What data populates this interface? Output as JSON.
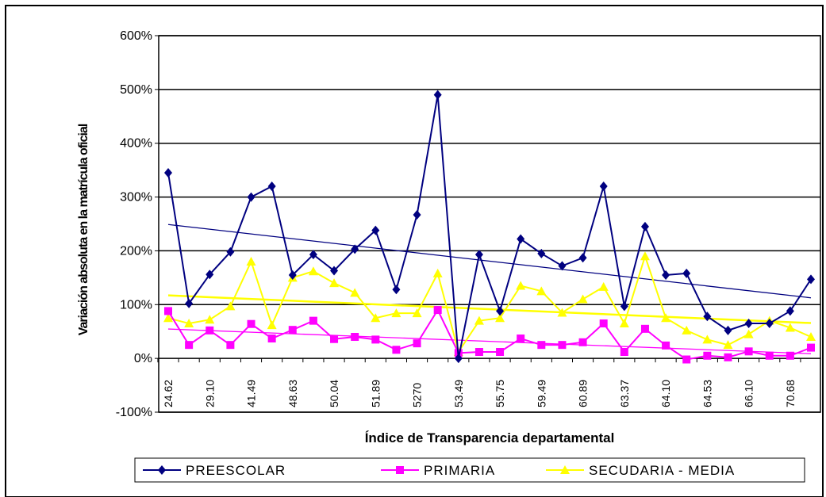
{
  "chart_data": {
    "type": "line",
    "y_axis_label": "Variación absoluta en la matrícula oficial",
    "x_axis_label": "Índice de Transparencia departamental",
    "categories": [
      "24.62",
      null,
      "29.10",
      null,
      "41.49",
      null,
      "48.63",
      null,
      "50.04",
      null,
      "51.89",
      null,
      "5270",
      null,
      "53.49",
      null,
      "55.75",
      null,
      "59.49",
      null,
      "60.89",
      null,
      "63.37",
      null,
      "64.10",
      null,
      "64.53",
      null,
      "66.10",
      null,
      "70.68",
      null
    ],
    "series": [
      {
        "name": "PREESCOLAR",
        "color": "#000080",
        "marker": "diamond",
        "trendline": true,
        "values": [
          345,
          102,
          156,
          198,
          300,
          320,
          155,
          193,
          163,
          203,
          238,
          128,
          267,
          490,
          0,
          193,
          88,
          222,
          195,
          172,
          187,
          320,
          97,
          245,
          155,
          158,
          78,
          52,
          65,
          65,
          88,
          147
        ]
      },
      {
        "name": "PRIMARIA",
        "color": "#ff00ff",
        "marker": "square",
        "trendline": true,
        "values": [
          88,
          25,
          52,
          25,
          64,
          37,
          53,
          70,
          36,
          40,
          35,
          16,
          28,
          90,
          10,
          12,
          12,
          37,
          25,
          25,
          30,
          65,
          12,
          55,
          24,
          -2,
          5,
          2,
          13,
          5,
          5,
          20
        ]
      },
      {
        "name": "SECUDARIA - MEDIA",
        "color": "#ffff00",
        "marker": "triangle",
        "trendline": true,
        "values": [
          75,
          65,
          72,
          97,
          180,
          62,
          150,
          162,
          140,
          122,
          75,
          84,
          84,
          158,
          12,
          70,
          75,
          135,
          125,
          85,
          110,
          133,
          65,
          190,
          75,
          52,
          35,
          25,
          45,
          70,
          57,
          40
        ]
      }
    ],
    "ylim": [
      -100,
      600
    ],
    "yticks": [
      {
        "value": -100,
        "label": "-100%"
      },
      {
        "value": 0,
        "label": "0%"
      },
      {
        "value": 100,
        "label": "100%"
      },
      {
        "value": 200,
        "label": "200%"
      },
      {
        "value": 300,
        "label": "300%"
      },
      {
        "value": 400,
        "label": "400%"
      },
      {
        "value": 500,
        "label": "500%"
      },
      {
        "value": 600,
        "label": "600%"
      }
    ],
    "grid": true,
    "legend": "bottom"
  }
}
